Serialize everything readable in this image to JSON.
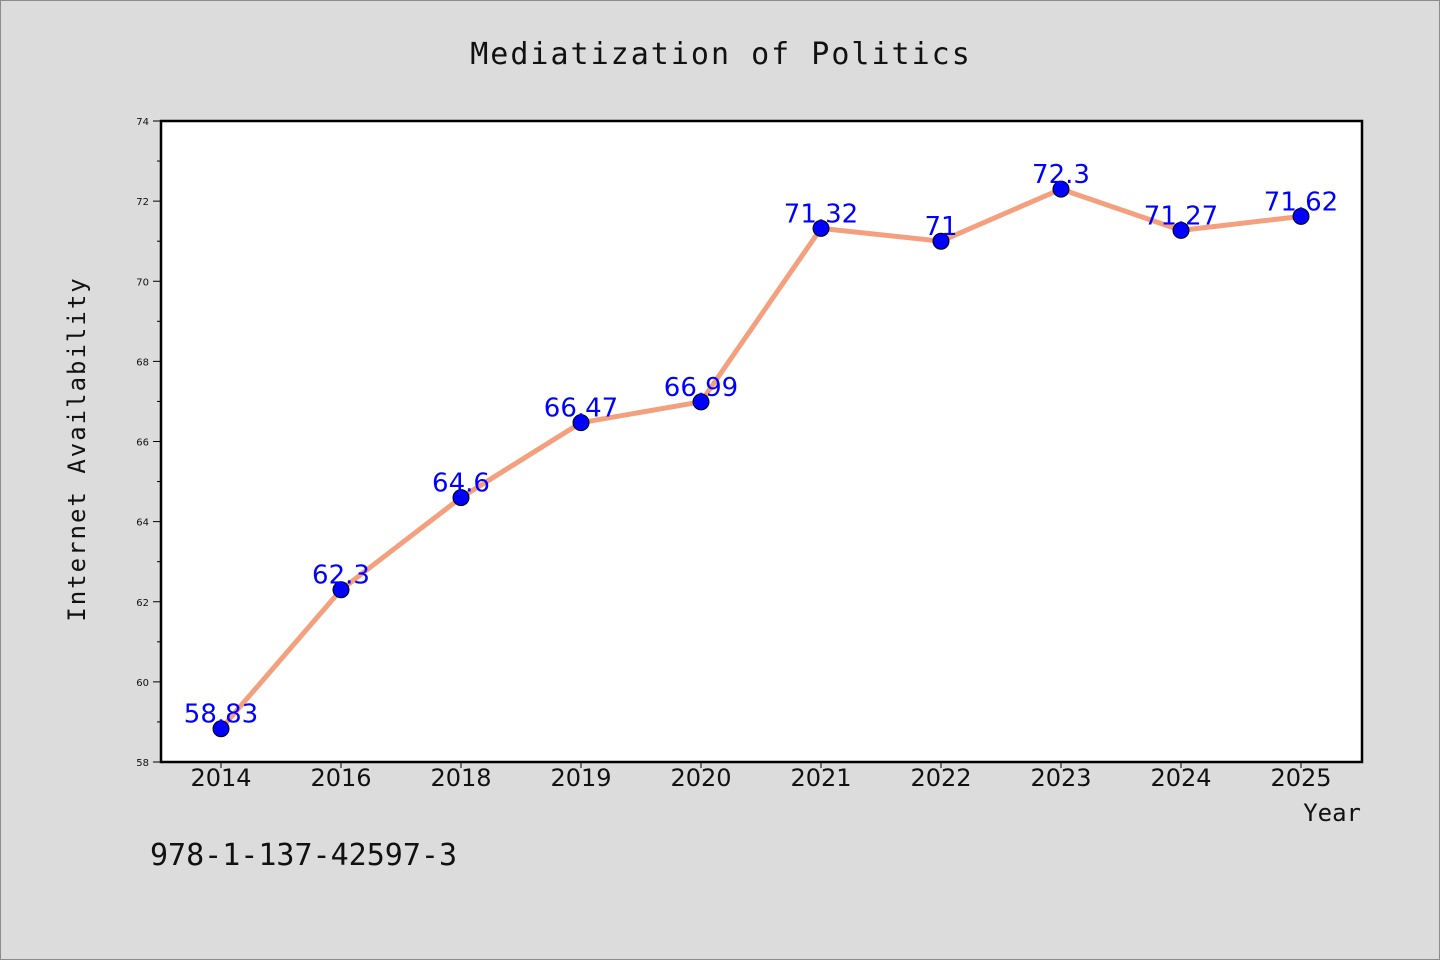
{
  "chart_data": {
    "type": "line",
    "title": "Mediatization of Politics",
    "xlabel": "Year",
    "ylabel": "Internet Availability",
    "categories": [
      "2014",
      "2016",
      "2018",
      "2019",
      "2020",
      "2021",
      "2022",
      "2023",
      "2024",
      "2025"
    ],
    "values": [
      58.83,
      62.3,
      64.6,
      66.47,
      66.99,
      71.32,
      71,
      72.3,
      71.27,
      71.62
    ],
    "data_labels": [
      "58.83",
      "62.3",
      "64.6",
      "66.47",
      "66.99",
      "71.32",
      "71",
      "72.3",
      "71.27",
      "71.62"
    ],
    "ylim": [
      58,
      74
    ],
    "y_ticks": [
      58,
      60,
      62,
      64,
      66,
      68,
      70,
      72,
      74
    ],
    "y_tick_labels": [
      "58",
      "60",
      "62",
      "64",
      "66",
      "68",
      "70",
      "72",
      "74"
    ],
    "grid": false,
    "line_color": "#f4a07e",
    "marker_color": "#0000ff",
    "label_color": "#0000ff",
    "background_color": "#dcdcdc",
    "plot_background_color": "#ffffff"
  },
  "footer": {
    "isbn": "978-1-137-42597-3"
  }
}
